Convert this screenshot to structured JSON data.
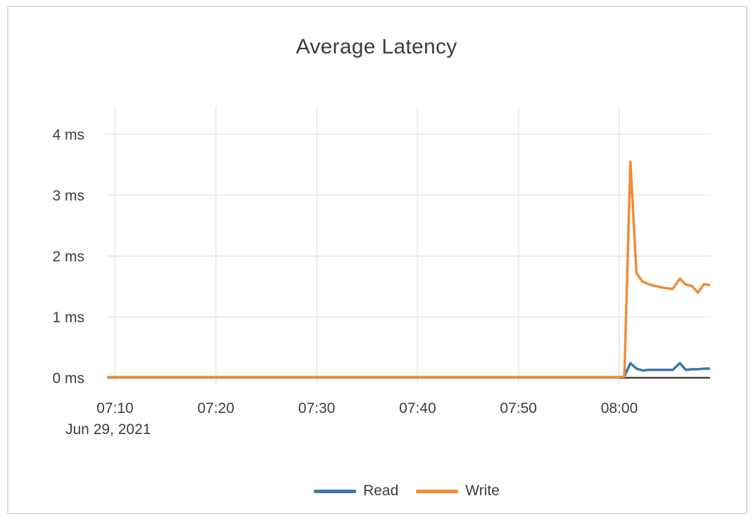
{
  "chart_data": {
    "type": "line",
    "title": "Average Latency",
    "x_axis": {
      "date_label": "Jun 29, 2021",
      "unit": "time (HH:MM)",
      "range_minutes_after_0700": [
        9.2,
        69
      ],
      "ticks": [
        {
          "t": 10,
          "label": "07:10"
        },
        {
          "t": 20,
          "label": "07:20"
        },
        {
          "t": 30,
          "label": "07:30"
        },
        {
          "t": 40,
          "label": "07:40"
        },
        {
          "t": 50,
          "label": "07:50"
        },
        {
          "t": 60,
          "label": "08:00"
        }
      ]
    },
    "y_axis": {
      "unit": "ms",
      "range": [
        0,
        4.45
      ],
      "ticks": [
        {
          "v": 0,
          "label": "0 ms"
        },
        {
          "v": 1,
          "label": "1 ms"
        },
        {
          "v": 2,
          "label": "2 ms"
        },
        {
          "v": 3,
          "label": "3 ms"
        },
        {
          "v": 4,
          "label": "4 ms"
        }
      ]
    },
    "grid": true,
    "legend_position": "bottom-center",
    "series": [
      {
        "name": "Read",
        "color": "#3a76ac",
        "points": [
          [
            9.2,
            0.01
          ],
          [
            20,
            0.01
          ],
          [
            30,
            0.01
          ],
          [
            40,
            0.01
          ],
          [
            50,
            0.01
          ],
          [
            60,
            0.01
          ],
          [
            60.5,
            0.02
          ],
          [
            61.1,
            0.24
          ],
          [
            61.7,
            0.15
          ],
          [
            62.3,
            0.12
          ],
          [
            62.9,
            0.13
          ],
          [
            63.5,
            0.13
          ],
          [
            64.1,
            0.13
          ],
          [
            64.7,
            0.13
          ],
          [
            65.3,
            0.13
          ],
          [
            66.0,
            0.24
          ],
          [
            66.6,
            0.13
          ],
          [
            67.2,
            0.14
          ],
          [
            67.8,
            0.14
          ],
          [
            68.4,
            0.15
          ],
          [
            69.0,
            0.15
          ]
        ]
      },
      {
        "name": "Write",
        "color": "#f08b3a",
        "points": [
          [
            9.2,
            0.01
          ],
          [
            20,
            0.01
          ],
          [
            30,
            0.01
          ],
          [
            40,
            0.01
          ],
          [
            50,
            0.01
          ],
          [
            60,
            0.01
          ],
          [
            60.5,
            0.02
          ],
          [
            61.1,
            3.55
          ],
          [
            61.7,
            1.72
          ],
          [
            62.3,
            1.58
          ],
          [
            62.9,
            1.54
          ],
          [
            63.5,
            1.51
          ],
          [
            64.1,
            1.49
          ],
          [
            64.7,
            1.47
          ],
          [
            65.3,
            1.46
          ],
          [
            66.0,
            1.63
          ],
          [
            66.6,
            1.53
          ],
          [
            67.2,
            1.51
          ],
          [
            67.8,
            1.4
          ],
          [
            68.4,
            1.54
          ],
          [
            69.0,
            1.52
          ]
        ]
      }
    ],
    "colors": {
      "axis_line": "#3f3f3f",
      "gridline": "#ececec",
      "text": "#3d3d3d",
      "card_border": "#dcdcdc",
      "background": "#ffffff"
    }
  }
}
